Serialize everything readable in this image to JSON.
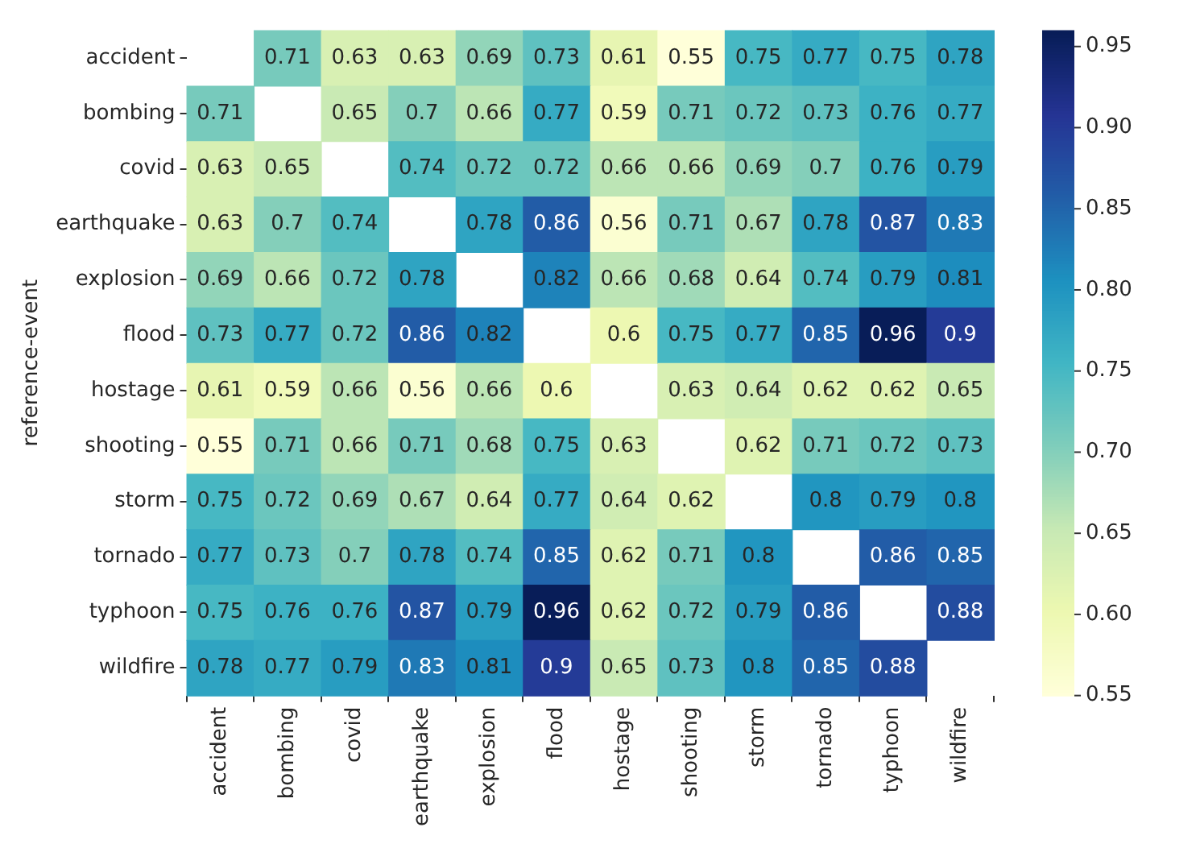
{
  "chart_data": {
    "type": "heatmap",
    "ylabel": "reference-event",
    "categories": [
      "accident",
      "bombing",
      "covid",
      "earthquake",
      "explosion",
      "flood",
      "hostage",
      "shooting",
      "storm",
      "tornado",
      "typhoon",
      "wildfire"
    ],
    "y_categories": [
      "accident",
      "bombing",
      "covid",
      "earthquake",
      "explosion",
      "flood",
      "hostage",
      "shooting",
      "storm",
      "tornado",
      "typhoon",
      "wildfire"
    ],
    "cells": [
      [
        null,
        0.71,
        0.63,
        0.63,
        0.69,
        0.73,
        0.61,
        0.55,
        0.75,
        0.77,
        0.75,
        0.78
      ],
      [
        0.71,
        null,
        0.65,
        0.7,
        0.66,
        0.77,
        0.59,
        0.71,
        0.72,
        0.73,
        0.76,
        0.77
      ],
      [
        0.63,
        0.65,
        null,
        0.74,
        0.72,
        0.72,
        0.66,
        0.66,
        0.69,
        0.7,
        0.76,
        0.79
      ],
      [
        0.63,
        0.7,
        0.74,
        null,
        0.78,
        0.86,
        0.56,
        0.71,
        0.67,
        0.78,
        0.87,
        0.83
      ],
      [
        0.69,
        0.66,
        0.72,
        0.78,
        null,
        0.82,
        0.66,
        0.68,
        0.64,
        0.74,
        0.79,
        0.81
      ],
      [
        0.73,
        0.77,
        0.72,
        0.86,
        0.82,
        null,
        0.6,
        0.75,
        0.77,
        0.85,
        0.96,
        0.9
      ],
      [
        0.61,
        0.59,
        0.66,
        0.56,
        0.66,
        0.6,
        null,
        0.63,
        0.64,
        0.62,
        0.62,
        0.65
      ],
      [
        0.55,
        0.71,
        0.66,
        0.71,
        0.68,
        0.75,
        0.63,
        null,
        0.62,
        0.71,
        0.72,
        0.73
      ],
      [
        0.75,
        0.72,
        0.69,
        0.67,
        0.64,
        0.77,
        0.64,
        0.62,
        null,
        0.8,
        0.79,
        0.8
      ],
      [
        0.77,
        0.73,
        0.7,
        0.78,
        0.74,
        0.85,
        0.62,
        0.71,
        0.8,
        null,
        0.86,
        0.85
      ],
      [
        0.75,
        0.76,
        0.76,
        0.87,
        0.79,
        0.96,
        0.62,
        0.72,
        0.79,
        0.86,
        null,
        0.88
      ],
      [
        0.78,
        0.77,
        0.79,
        0.83,
        0.81,
        0.9,
        0.65,
        0.73,
        0.8,
        0.85,
        0.88,
        null
      ]
    ],
    "data_labels": true,
    "clim": [
      0.55,
      0.96
    ],
    "cticks": [
      0.55,
      {
        "value": 0.6,
        "label": "0.60"
      },
      0.65,
      {
        "value": 0.7,
        "label": "0.70"
      },
      0.75,
      {
        "value": 0.8,
        "label": "0.80"
      },
      0.85,
      {
        "value": 0.9,
        "label": "0.90"
      },
      0.95
    ]
  }
}
